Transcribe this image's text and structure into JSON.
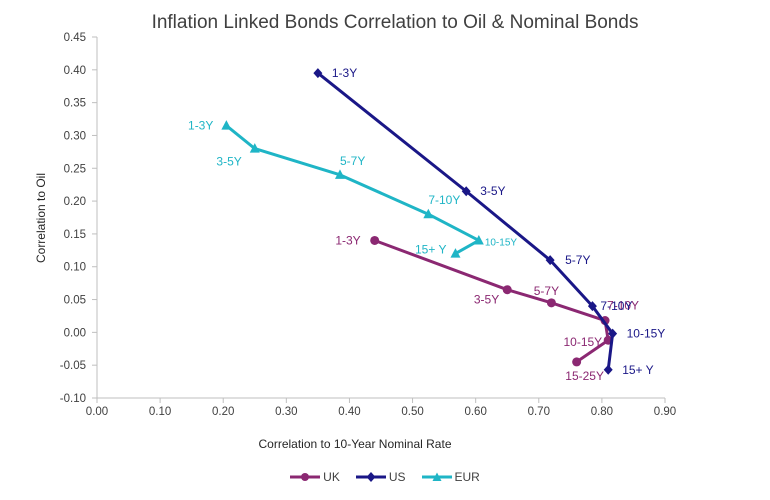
{
  "chart_data": {
    "type": "line",
    "title": "Inflation Linked Bonds Correlation to Oil & Nominal Bonds",
    "xlabel": "Correlation to 10-Year Nominal Rate",
    "ylabel": "Correlation to Oil",
    "xlim": [
      0.0,
      0.9
    ],
    "ylim": [
      -0.1,
      0.45
    ],
    "x_ticks": [
      "0.00",
      "0.10",
      "0.20",
      "0.30",
      "0.40",
      "0.50",
      "0.60",
      "0.70",
      "0.80",
      "0.90"
    ],
    "y_ticks": [
      "0.45",
      "0.40",
      "0.35",
      "0.30",
      "0.25",
      "0.20",
      "0.15",
      "0.10",
      "0.05",
      "0.00",
      "-0.05",
      "-0.10"
    ],
    "grid": false,
    "legend_position": "bottom",
    "series": [
      {
        "name": "UK",
        "color": "#8B2872",
        "marker": "circle",
        "points": [
          {
            "x": 0.44,
            "y": 0.14,
            "label": "1-3Y"
          },
          {
            "x": 0.65,
            "y": 0.065,
            "label": "3-5Y"
          },
          {
            "x": 0.72,
            "y": 0.045,
            "label": "5-7Y"
          },
          {
            "x": 0.805,
            "y": 0.018,
            "label": "7-10Y"
          },
          {
            "x": 0.81,
            "y": -0.012,
            "label": "10-15Y"
          },
          {
            "x": 0.76,
            "y": -0.045,
            "label": "15-25Y"
          }
        ]
      },
      {
        "name": "US",
        "color": "#1A1787",
        "marker": "diamond",
        "points": [
          {
            "x": 0.35,
            "y": 0.395,
            "label": "1-3Y"
          },
          {
            "x": 0.585,
            "y": 0.215,
            "label": "3-5Y"
          },
          {
            "x": 0.718,
            "y": 0.11,
            "label": "5-7Y"
          },
          {
            "x": 0.785,
            "y": 0.04,
            "label": "7-10Y"
          },
          {
            "x": 0.817,
            "y": -0.002,
            "label": "10-15Y"
          },
          {
            "x": 0.81,
            "y": -0.057,
            "label": "15+ Y"
          }
        ]
      },
      {
        "name": "EUR",
        "color": "#1FB5C6",
        "marker": "triangle",
        "points": [
          {
            "x": 0.205,
            "y": 0.315,
            "label": "1-3Y"
          },
          {
            "x": 0.25,
            "y": 0.28,
            "label": "3-5Y"
          },
          {
            "x": 0.385,
            "y": 0.24,
            "label": "5-7Y"
          },
          {
            "x": 0.525,
            "y": 0.18,
            "label": "7-10Y"
          },
          {
            "x": 0.605,
            "y": 0.14,
            "label": "10-15Y"
          },
          {
            "x": 0.568,
            "y": 0.12,
            "label": "15+ Y"
          }
        ]
      }
    ]
  }
}
